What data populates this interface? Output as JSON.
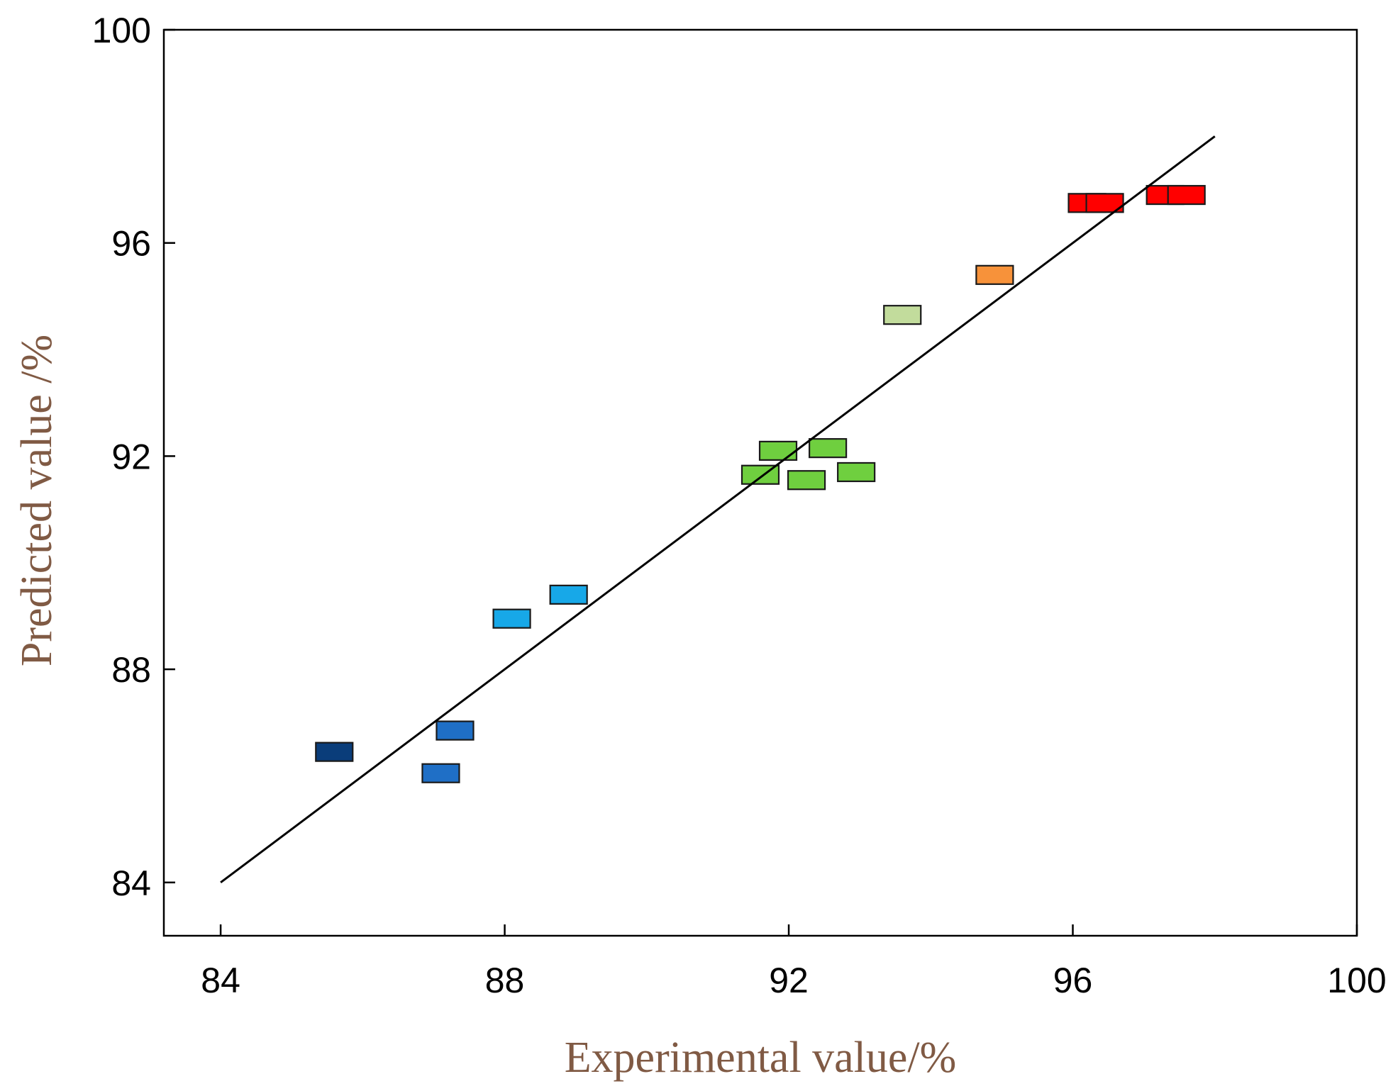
{
  "chart_data": {
    "type": "scatter",
    "title": "",
    "xlabel": "Experimental value/%",
    "ylabel": "Predicted value /%",
    "xlim": [
      83.2,
      100
    ],
    "ylim": [
      83.0,
      100
    ],
    "xticks": [
      84,
      88,
      92,
      96,
      100
    ],
    "yticks": [
      84,
      88,
      92,
      96,
      100
    ],
    "grid": false,
    "fit_line": {
      "x": [
        84,
        98
      ],
      "y": [
        84,
        98
      ]
    },
    "series": [
      {
        "name": "points",
        "points": [
          {
            "x": 85.6,
            "y": 86.45,
            "color": "#0a3d7a"
          },
          {
            "x": 87.1,
            "y": 86.05,
            "color": "#1f6fc6"
          },
          {
            "x": 87.3,
            "y": 86.85,
            "color": "#1f6fc6"
          },
          {
            "x": 88.1,
            "y": 88.95,
            "color": "#17a8e8"
          },
          {
            "x": 88.9,
            "y": 89.4,
            "color": "#17a8e8"
          },
          {
            "x": 91.6,
            "y": 91.65,
            "color": "#6fcf3f"
          },
          {
            "x": 91.85,
            "y": 92.1,
            "color": "#6fcf3f"
          },
          {
            "x": 92.25,
            "y": 91.55,
            "color": "#6fcf3f"
          },
          {
            "x": 92.55,
            "y": 92.15,
            "color": "#6fcf3f"
          },
          {
            "x": 92.95,
            "y": 91.7,
            "color": "#6fcf3f"
          },
          {
            "x": 93.6,
            "y": 94.65,
            "color": "#c2dc9c"
          },
          {
            "x": 94.9,
            "y": 95.4,
            "color": "#f7923a"
          },
          {
            "x": 96.2,
            "y": 96.75,
            "color": "#ff0000"
          },
          {
            "x": 96.45,
            "y": 96.75,
            "color": "#ff0000"
          },
          {
            "x": 97.3,
            "y": 96.9,
            "color": "#ff0000"
          },
          {
            "x": 97.6,
            "y": 96.9,
            "color": "#ff0000"
          }
        ]
      }
    ],
    "colors": {
      "axis_title": "#805a44",
      "axis": "#000000",
      "fit_line": "#000000"
    }
  }
}
